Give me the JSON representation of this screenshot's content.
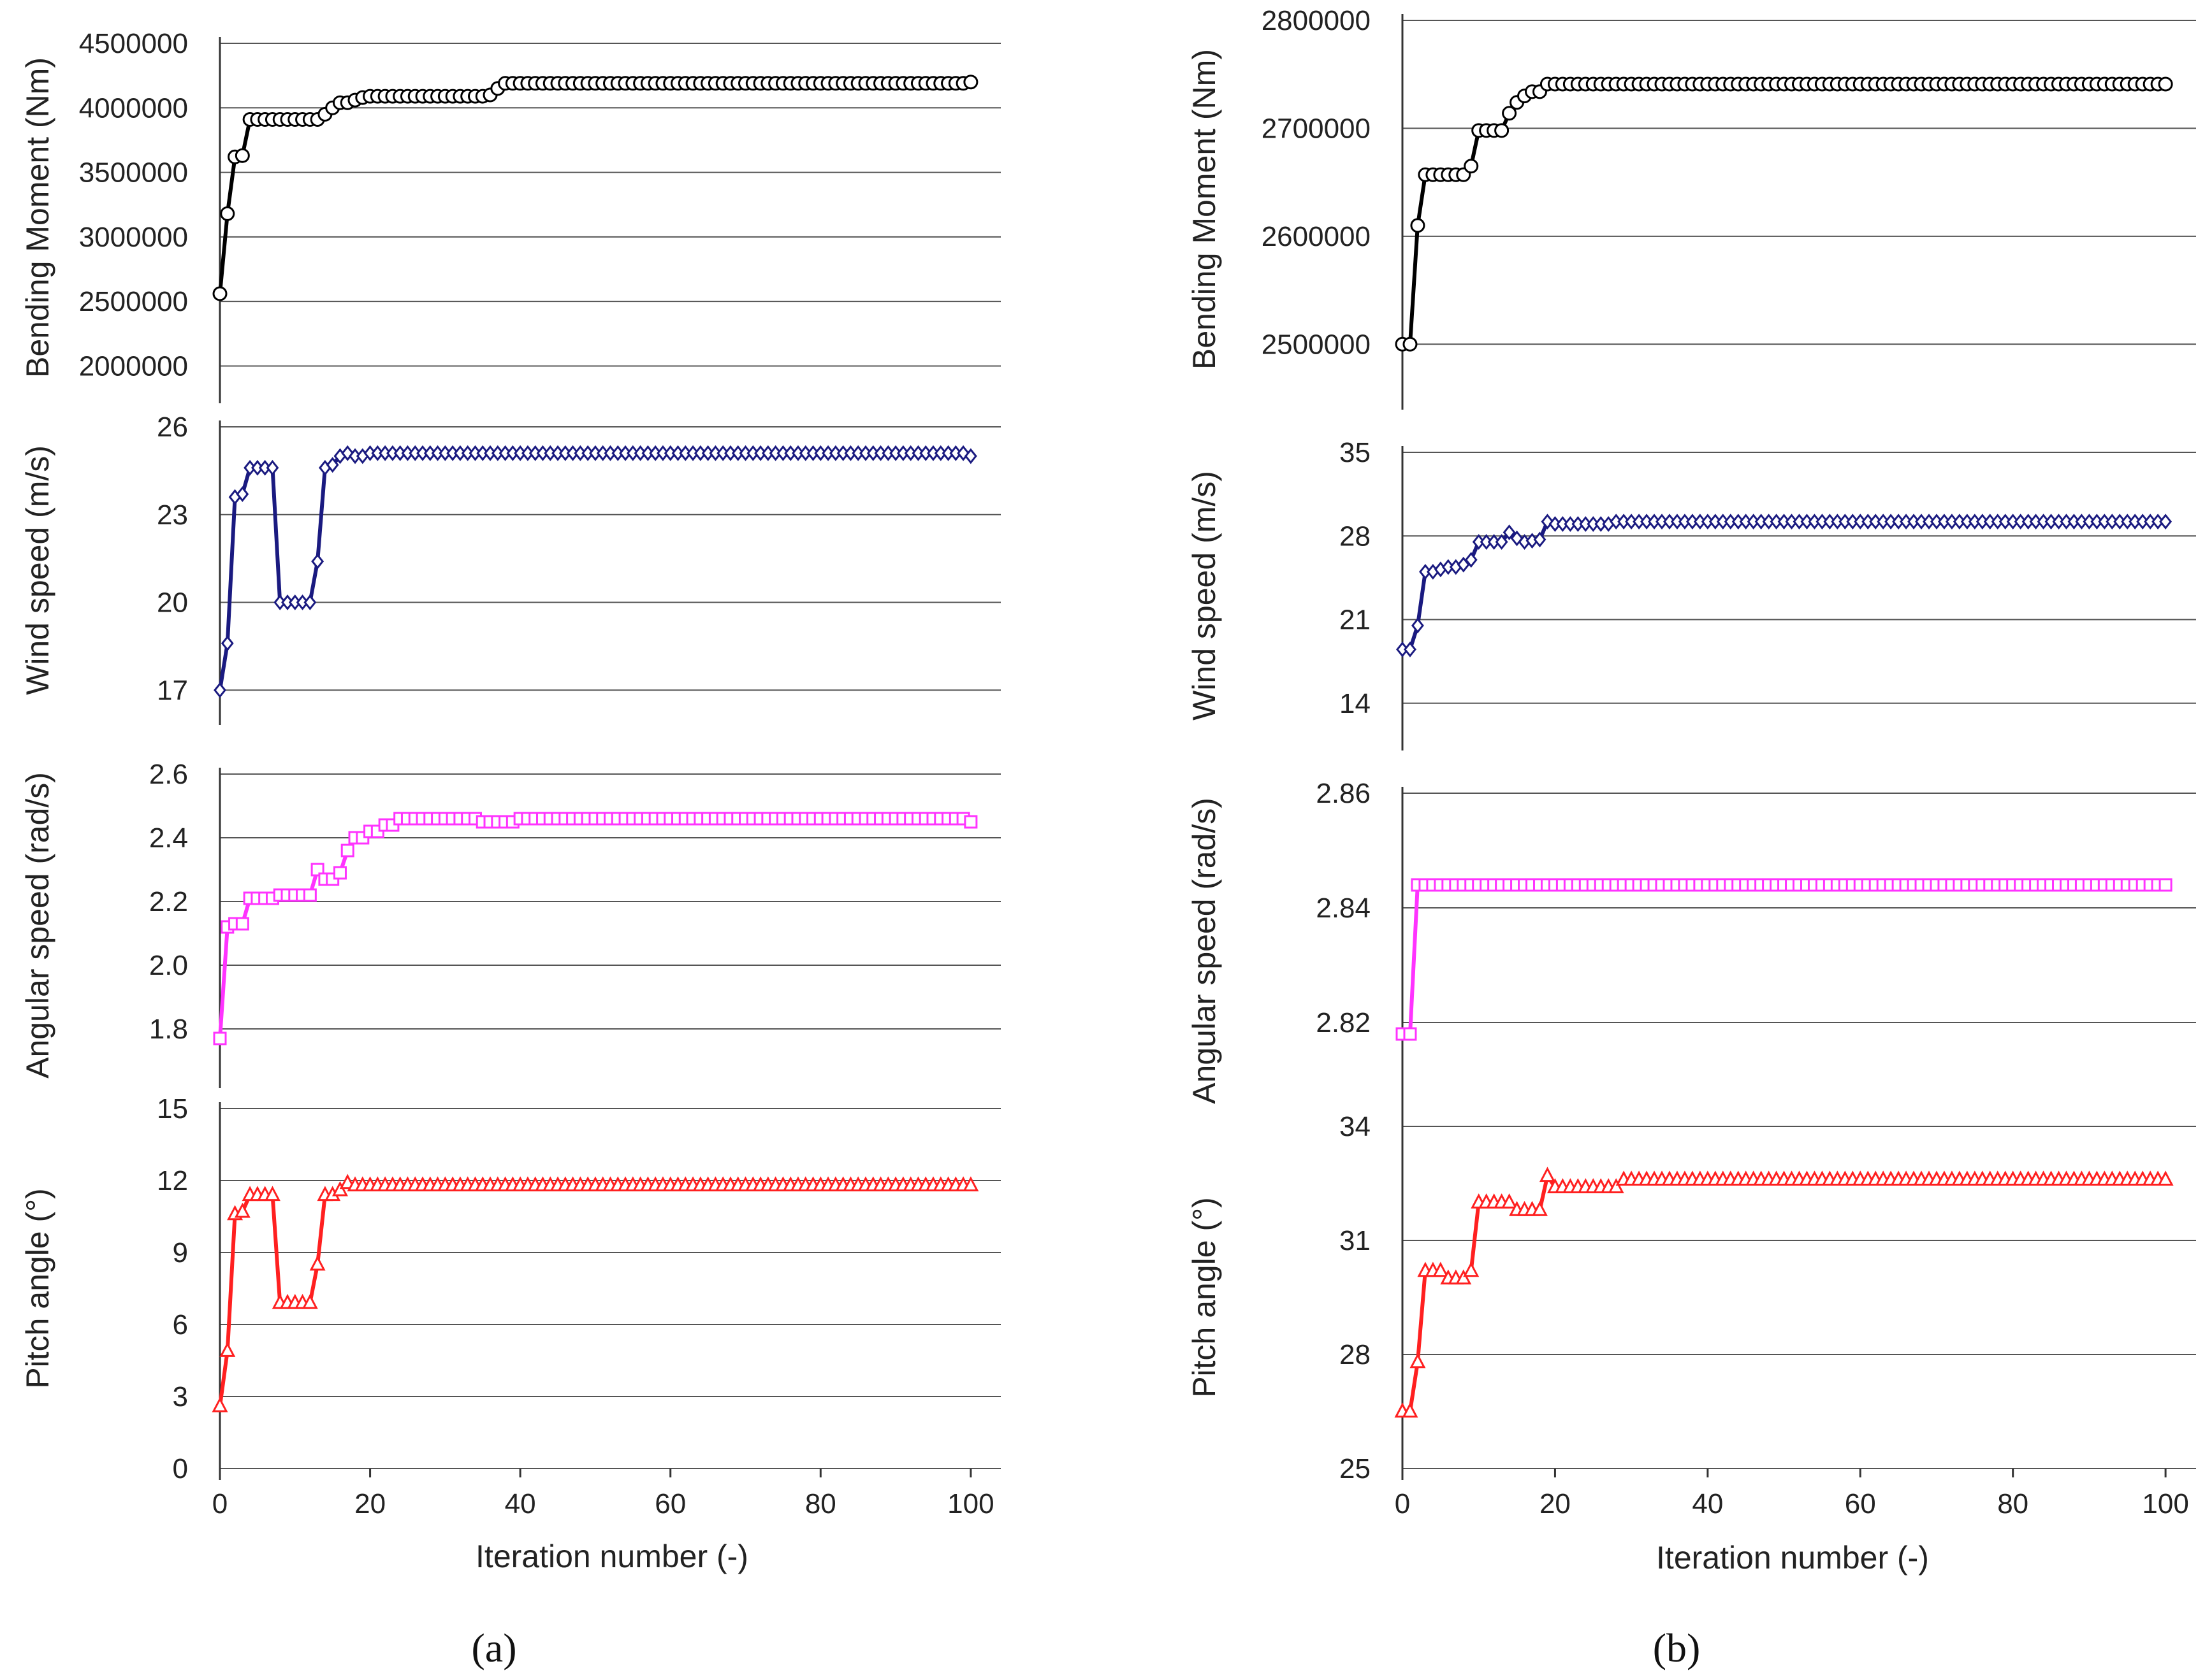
{
  "figure": {
    "panel_labels": [
      "(a)",
      "(b)"
    ],
    "xlabel": "Iteration number (-)"
  },
  "chart_data": [
    {
      "type": "line",
      "column": "a",
      "ylabel": "Bending Moment (Nm)",
      "yticks": [
        "2000000",
        "2500000",
        "3000000",
        "3500000",
        "4000000",
        "4500000"
      ],
      "ylim": [
        1800000,
        4500000
      ],
      "xlim": [
        0,
        104
      ],
      "color": "#000000",
      "fill": "#ffffff",
      "marker": "circle",
      "series": [
        {
          "points": [
            [
              0,
              2560000
            ],
            [
              1,
              3180000
            ],
            [
              2,
              3620000
            ],
            [
              3,
              3630000
            ],
            [
              4,
              3910000
            ],
            [
              14,
              3950000
            ],
            [
              15,
              4000000
            ],
            [
              16,
              4040000
            ],
            [
              18,
              4060000
            ],
            [
              19,
              4080000
            ],
            [
              20,
              4090000
            ],
            [
              36,
              4100000
            ],
            [
              37,
              4150000
            ],
            [
              38,
              4190000
            ],
            [
              100,
              4200000
            ]
          ]
        }
      ]
    },
    {
      "type": "line",
      "column": "a",
      "ylabel": "Wind speed (m/s)",
      "yticks": [
        "17",
        "20",
        "23",
        "26"
      ],
      "ylim": [
        16.2,
        26
      ],
      "xlim": [
        0,
        104
      ],
      "color": "#1a1a80",
      "fill": "#ffffff",
      "marker": "diamond",
      "series": [
        {
          "points": [
            [
              0,
              17
            ],
            [
              1,
              18.6
            ],
            [
              2,
              23.6
            ],
            [
              3,
              23.7
            ],
            [
              4,
              24.6
            ],
            [
              7,
              24.6
            ],
            [
              8,
              20
            ],
            [
              12,
              20
            ],
            [
              13,
              21.4
            ],
            [
              14,
              24.6
            ],
            [
              15,
              24.7
            ],
            [
              16,
              25
            ],
            [
              17,
              25.1
            ],
            [
              18,
              25
            ],
            [
              20,
              25.1
            ],
            [
              100,
              25
            ]
          ]
        }
      ]
    },
    {
      "type": "line",
      "column": "a",
      "ylabel": "Angular speed (rad/s)",
      "yticks": [
        "1.8",
        "2.0",
        "2.2",
        "2.4",
        "2.6"
      ],
      "ylim": [
        1.65,
        2.6
      ],
      "xlim": [
        0,
        104
      ],
      "color": "#ff33ff",
      "fill": "#ffffff",
      "marker": "square",
      "series": [
        {
          "points": [
            [
              0,
              1.77
            ],
            [
              1,
              2.12
            ],
            [
              2,
              2.13
            ],
            [
              3,
              2.13
            ],
            [
              4,
              2.21
            ],
            [
              8,
              2.22
            ],
            [
              13,
              2.3
            ],
            [
              14,
              2.27
            ],
            [
              16,
              2.29
            ],
            [
              17,
              2.36
            ],
            [
              18,
              2.4
            ],
            [
              20,
              2.42
            ],
            [
              22,
              2.44
            ],
            [
              24,
              2.46
            ],
            [
              30,
              2.46
            ],
            [
              35,
              2.45
            ],
            [
              40,
              2.46
            ],
            [
              50,
              2.46
            ],
            [
              100,
              2.45
            ]
          ]
        }
      ]
    },
    {
      "type": "line",
      "column": "a",
      "ylabel": "Pitch angle (°)",
      "yticks": [
        "0",
        "3",
        "6",
        "9",
        "12",
        "15"
      ],
      "ylim": [
        0,
        15
      ],
      "xlim": [
        0,
        104
      ],
      "color": "#ff2020",
      "fill": "#ffffff",
      "marker": "triangle",
      "series": [
        {
          "points": [
            [
              0,
              2.6
            ],
            [
              1,
              4.9
            ],
            [
              2,
              10.6
            ],
            [
              3,
              10.7
            ],
            [
              4,
              11.4
            ],
            [
              7,
              11.4
            ],
            [
              8,
              6.9
            ],
            [
              12,
              6.9
            ],
            [
              13,
              8.5
            ],
            [
              14,
              11.4
            ],
            [
              16,
              11.6
            ],
            [
              17,
              11.9
            ],
            [
              18,
              11.8
            ],
            [
              100,
              11.8
            ]
          ]
        }
      ]
    },
    {
      "type": "line",
      "column": "b",
      "ylabel": "Bending Moment (Nm)",
      "yticks": [
        "2500000",
        "2600000",
        "2700000",
        "2800000"
      ],
      "ylim": [
        2450000,
        2800000
      ],
      "xlim": [
        0,
        104
      ],
      "color": "#000000",
      "fill": "#ffffff",
      "marker": "circle",
      "series": [
        {
          "points": [
            [
              0,
              2500000
            ],
            [
              1,
              2500000
            ],
            [
              2,
              2610000
            ],
            [
              3,
              2657000
            ],
            [
              8,
              2657000
            ],
            [
              9,
              2665000
            ],
            [
              10,
              2698000
            ],
            [
              13,
              2698000
            ],
            [
              14,
              2714000
            ],
            [
              15,
              2724000
            ],
            [
              16,
              2730000
            ],
            [
              17,
              2734000
            ],
            [
              18,
              2734000
            ],
            [
              19,
              2741000
            ],
            [
              100,
              2741000
            ]
          ]
        }
      ]
    },
    {
      "type": "line",
      "column": "b",
      "ylabel": "Wind speed (m/s)",
      "yticks": [
        "14",
        "21",
        "28",
        "35"
      ],
      "ylim": [
        11,
        35
      ],
      "xlim": [
        0,
        104
      ],
      "color": "#1a1a80",
      "fill": "#ffffff",
      "marker": "diamond",
      "series": [
        {
          "points": [
            [
              0,
              18.5
            ],
            [
              1,
              18.5
            ],
            [
              2,
              20.5
            ],
            [
              3,
              25
            ],
            [
              4,
              25
            ],
            [
              5,
              25.2
            ],
            [
              6,
              25.4
            ],
            [
              7,
              25.4
            ],
            [
              8,
              25.6
            ],
            [
              9,
              26
            ],
            [
              10,
              27.5
            ],
            [
              13,
              27.5
            ],
            [
              14,
              28.3
            ],
            [
              15,
              27.8
            ],
            [
              16,
              27.5
            ],
            [
              17,
              27.6
            ],
            [
              18,
              27.7
            ],
            [
              19,
              29.2
            ],
            [
              20,
              29
            ],
            [
              26,
              29
            ],
            [
              28,
              29.2
            ],
            [
              100,
              29.2
            ]
          ]
        }
      ]
    },
    {
      "type": "line",
      "column": "b",
      "ylabel": "Angular speed (rad/s)",
      "yticks": [
        "2.82",
        "2.84",
        "2.86"
      ],
      "ylim": [
        2.805,
        2.86
      ],
      "xlim": [
        0,
        104
      ],
      "color": "#ff33ff",
      "fill": "#ffffff",
      "marker": "square",
      "series": [
        {
          "points": [
            [
              0,
              2.818
            ],
            [
              1,
              2.818
            ],
            [
              2,
              2.844
            ],
            [
              100,
              2.844
            ]
          ]
        }
      ]
    },
    {
      "type": "line",
      "column": "b",
      "ylabel": "Pitch angle (°)",
      "yticks": [
        "25",
        "28",
        "31",
        "34"
      ],
      "ylim": [
        25,
        34
      ],
      "xlim": [
        0,
        104
      ],
      "color": "#ff2020",
      "fill": "#ffffff",
      "marker": "triangle",
      "series": [
        {
          "points": [
            [
              0,
              26.5
            ],
            [
              1,
              26.5
            ],
            [
              2,
              27.8
            ],
            [
              3,
              30.2
            ],
            [
              5,
              30.2
            ],
            [
              6,
              30
            ],
            [
              9,
              30.2
            ],
            [
              10,
              32
            ],
            [
              14,
              32
            ],
            [
              15,
              31.8
            ],
            [
              17,
              31.8
            ],
            [
              18,
              31.8
            ],
            [
              19,
              32.7
            ],
            [
              20,
              32.4
            ],
            [
              28,
              32.4
            ],
            [
              29,
              32.6
            ],
            [
              100,
              32.6
            ]
          ]
        }
      ]
    }
  ]
}
